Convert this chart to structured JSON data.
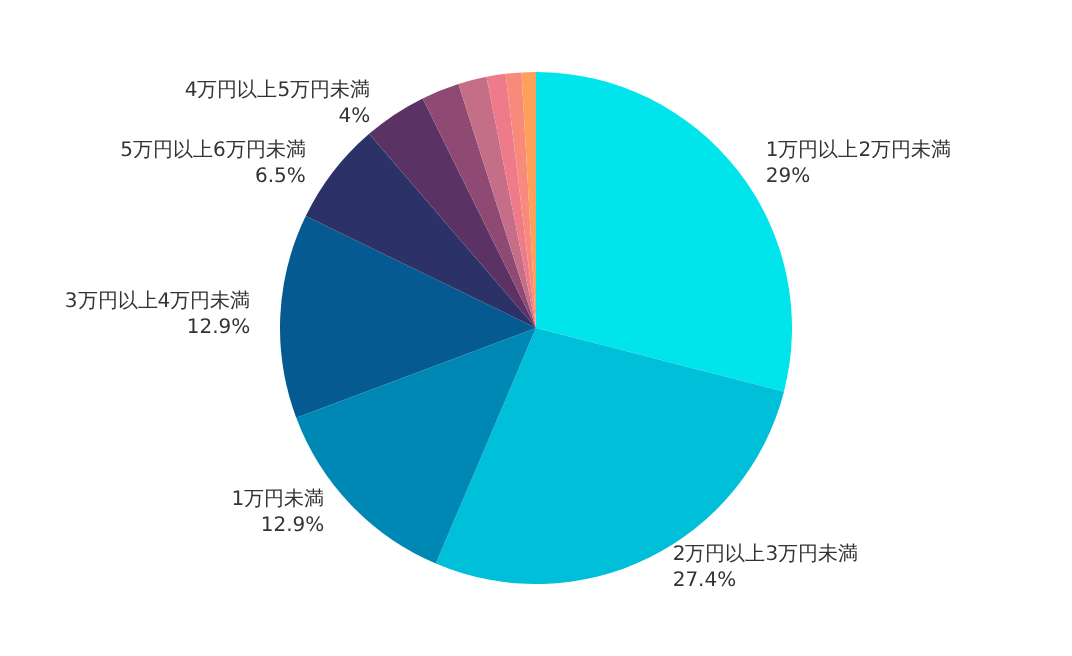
{
  "chart_data": {
    "type": "pie",
    "categories": [
      "1万円以上2万円未満",
      "2万円以上3万円未満",
      "1万円未満",
      "3万円以上4万円未満",
      "5万円以上6万円未満",
      "4万円以上5万円未満",
      null,
      null,
      null,
      null,
      null
    ],
    "values": [
      29,
      27.4,
      12.9,
      12.9,
      6.5,
      4,
      2.4,
      1.8,
      1.2,
      1.0,
      0.9
    ],
    "value_labels": [
      "29%",
      "27.4%",
      "12.9%",
      "12.9%",
      "6.5%",
      "4%",
      null,
      null,
      null,
      null,
      null
    ],
    "colors": [
      "#00e4ec",
      "#00bfd9",
      "#0088b5",
      "#055a92",
      "#2c3268",
      "#5a3264",
      "#8e4a72",
      "#c56e88",
      "#ef7a8a",
      "#f78a7a",
      "#fca05a"
    ],
    "legend": false
  }
}
